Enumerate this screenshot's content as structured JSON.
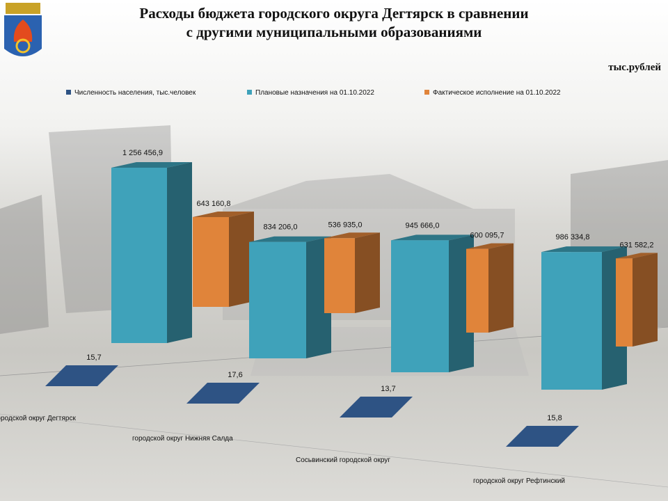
{
  "chart_data": {
    "type": "bar3d",
    "title": "Расходы бюджета городского округа Дегтярск в сравнении с другими муниципальными образованиями",
    "unit": "тыс.рублей",
    "categories": [
      "городской округ Дегтярск",
      "городской округ Нижняя  Салда",
      "Сосьвинский городской округ",
      "городской округ Рефтинский"
    ],
    "series": [
      {
        "name": "Численность населения, тыс.человек",
        "color": "#2e5384",
        "values": [
          15.7,
          17.6,
          13.7,
          15.8
        ],
        "value_labels": [
          "15,7",
          "17,6",
          "13,7",
          "15,8"
        ]
      },
      {
        "name": "Плановые назначения на 01.10.2022",
        "color": "#3fa2ba",
        "values": [
          1256456.9,
          834206.0,
          945666.0,
          986334.8
        ],
        "value_labels": [
          "1 256 456,9",
          "834 206,0",
          "945 666,0",
          "986 334,8"
        ]
      },
      {
        "name": "Фактическое исполнение на 01.10.2022",
        "color": "#e0843a",
        "values": [
          643160.8,
          536935.0,
          600095.7,
          631582.2
        ],
        "value_labels": [
          "643 160,8",
          "536 935,0",
          "600 095,7",
          "631 582,2"
        ]
      }
    ],
    "legend": "top"
  }
}
